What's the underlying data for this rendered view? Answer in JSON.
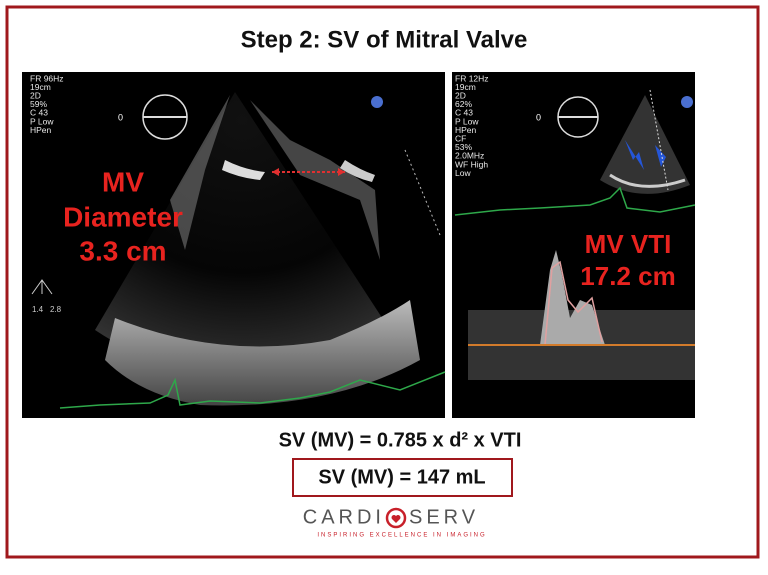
{
  "title": "Step 2: SV of Mitral Valve",
  "left_image": {
    "settings": [
      "FR 96Hz",
      "19cm",
      "2D",
      "59%",
      "C 43",
      "P Low",
      "HPen"
    ],
    "probe_angle": "0",
    "scale": [
      "1.4",
      "2.8"
    ],
    "annotation": [
      "MV",
      "Diameter",
      "3.3 cm"
    ]
  },
  "right_image": {
    "settings": [
      "FR 12Hz",
      "19cm",
      "2D",
      "62%",
      "C 43",
      "P Low",
      "HPen",
      "CF",
      "53%",
      "2.0MHz",
      "WF High",
      "Low"
    ],
    "probe_angle": "0",
    "annotation": [
      "MV VTI",
      "17.2 cm"
    ]
  },
  "formula": "SV (MV) = 0.785 x d² x VTI",
  "result": "SV (MV) = 147 mL",
  "logo": {
    "name_left": "CARDI",
    "name_right": "SERV",
    "tagline": "INSPIRING EXCELLENCE IN IMAGING"
  }
}
